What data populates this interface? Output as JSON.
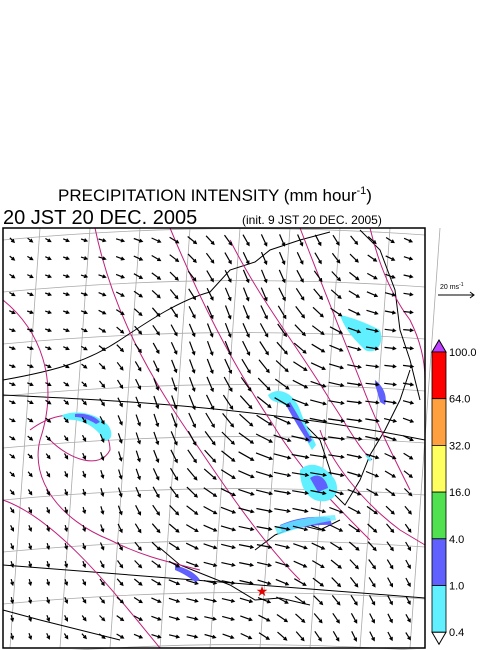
{
  "header": {
    "title": {
      "text": "PRECIPITATION INTENSITY (mm hour",
      "superscript": "-1",
      "close": ")"
    },
    "valid_time": "20 JST 20 DEC. 2005",
    "init_time": "(init. 9 JST 20 DEC. 2005)"
  },
  "wind_scale": {
    "text": "20 ms",
    "superscript": "-1"
  },
  "colorbar": {
    "labels": [
      "100.0",
      "64.0",
      "32.0",
      "16.0",
      "4.0",
      "1.0",
      "0.4"
    ],
    "colors": [
      "#ff0000",
      "#ffa040",
      "#ffff60",
      "#50e050",
      "#6060ff",
      "#60f0ff"
    ],
    "over_color": "#c040ff",
    "under_color": "#ffffff"
  }
}
